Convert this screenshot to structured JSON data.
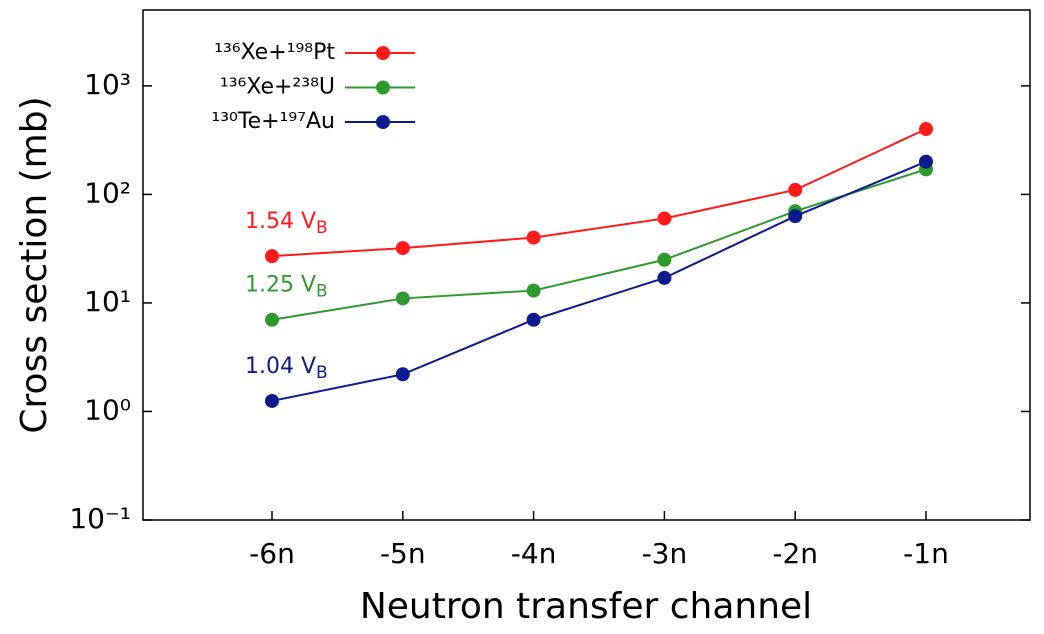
{
  "chart_data": {
    "type": "line",
    "xlabel": "Neutron transfer channel",
    "ylabel": "Cross section (mb)",
    "categories": [
      "-6n",
      "-5n",
      "-4n",
      "-3n",
      "-2n",
      "-1n"
    ],
    "log_y": true,
    "ylim": [
      0.1,
      5000
    ],
    "yticks": [
      {
        "value": 0.1,
        "label": "10⁻¹"
      },
      {
        "value": 1,
        "label": "10⁰"
      },
      {
        "value": 10,
        "label": "10¹"
      },
      {
        "value": 100,
        "label": "10²"
      },
      {
        "value": 1000,
        "label": "10³"
      }
    ],
    "legend": "upper left",
    "series": [
      {
        "name": "¹³⁶Xe+¹⁹⁸Pt",
        "color": "#ff1a1a",
        "values": [
          27,
          32,
          40,
          60,
          110,
          400
        ]
      },
      {
        "name": "¹³⁶Xe+²³⁸U",
        "color": "#2e9a2e",
        "values": [
          7.0,
          11,
          13,
          25,
          70,
          170
        ]
      },
      {
        "name": "¹³⁰Te+¹⁹⁷Au",
        "color": "#0b1a8c",
        "values": [
          1.25,
          2.2,
          7.0,
          17,
          63,
          200
        ]
      }
    ],
    "annotations": [
      {
        "text": "1.54 V",
        "sub": "B"
      },
      {
        "text": "1.25 V",
        "sub": "B"
      },
      {
        "text": "1.04 V",
        "sub": "B"
      }
    ]
  }
}
